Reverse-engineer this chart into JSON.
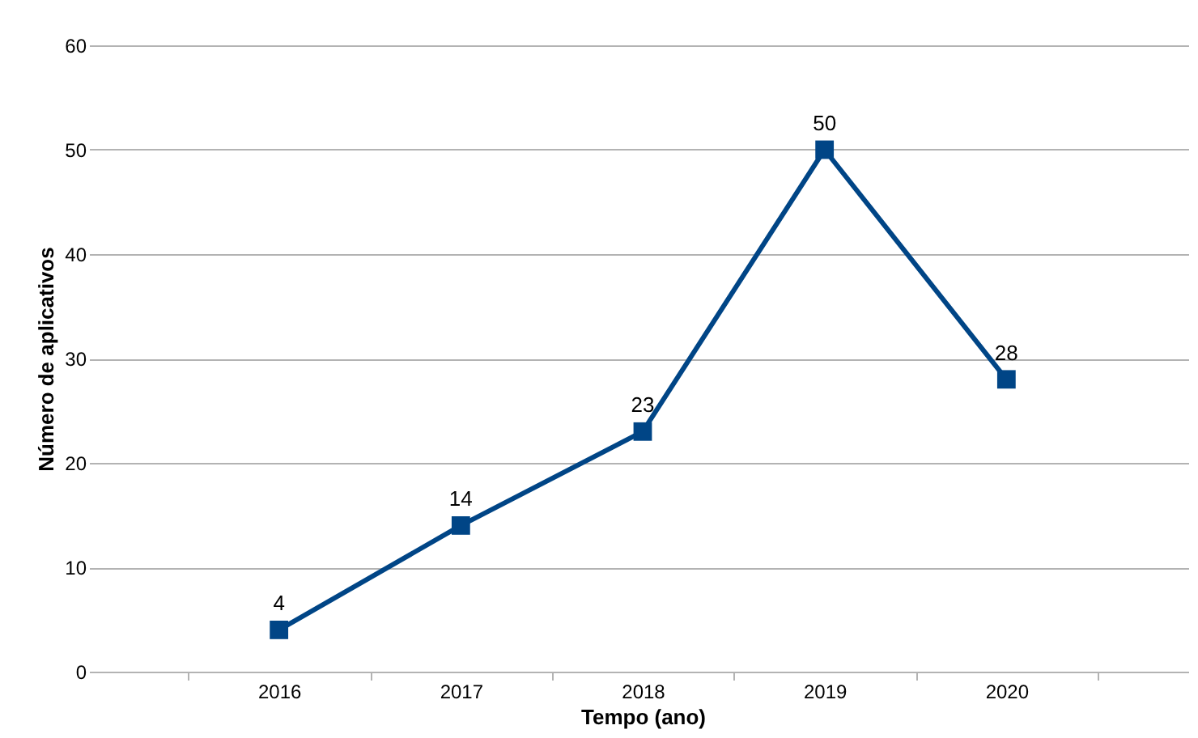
{
  "chart_data": {
    "type": "line",
    "xlabel": "Tempo (ano)",
    "ylabel": "Número de aplicativos",
    "categories": [
      "2016",
      "2017",
      "2018",
      "2019",
      "2020"
    ],
    "series": [
      {
        "color": "#004586",
        "values": [
          4,
          14,
          23,
          50,
          28
        ]
      }
    ],
    "ylim": [
      0,
      60
    ],
    "yticks": [
      0,
      10,
      20,
      30,
      40,
      50,
      60
    ],
    "grid": "y",
    "marker": "square",
    "line_style": "solid",
    "data_labels": true,
    "legend": false
  }
}
